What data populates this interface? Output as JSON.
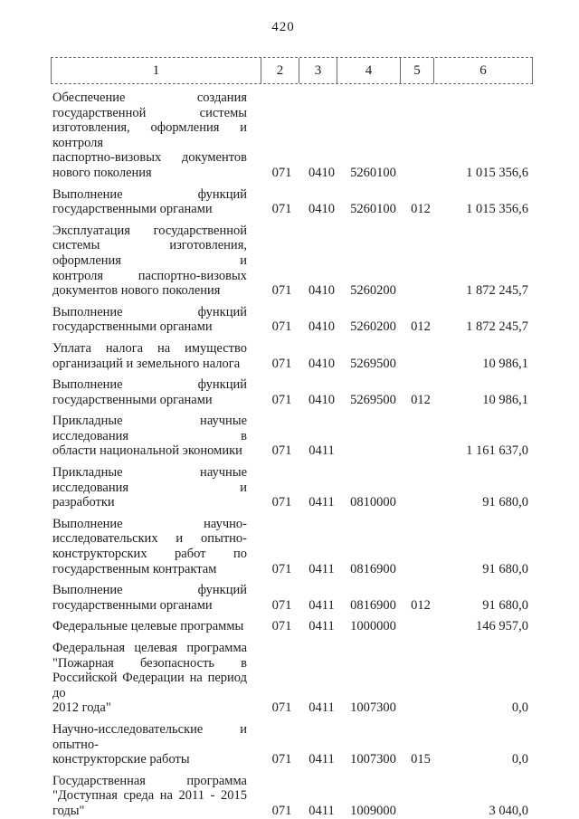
{
  "page": {
    "number": "420"
  },
  "colors": {
    "ink": "#1c1c1c",
    "paper": "#ffffff",
    "table_border": "#6a6a6a"
  },
  "table": {
    "header": [
      "1",
      "2",
      "3",
      "4",
      "5",
      "6"
    ],
    "rows": [
      {
        "name_lines": [
          "Обеспечение создания",
          "государственной системы",
          "изготовления, оформления и контроля",
          "паспортно-визовых документов",
          "нового поколения"
        ],
        "col2": "071",
        "col3": "0410",
        "col4": "5260100",
        "col5": "",
        "col6": "1 015 356,6"
      },
      {
        "name_lines": [
          "Выполнение функций",
          "государственными органами"
        ],
        "col2": "071",
        "col3": "0410",
        "col4": "5260100",
        "col5": "012",
        "col6": "1 015 356,6"
      },
      {
        "name_lines": [
          "Эксплуатация государственной",
          "системы изготовления, оформления и",
          "контроля паспортно-визовых",
          "документов нового поколения"
        ],
        "col2": "071",
        "col3": "0410",
        "col4": "5260200",
        "col5": "",
        "col6": "1 872 245,7"
      },
      {
        "name_lines": [
          "Выполнение функций",
          "государственными органами"
        ],
        "col2": "071",
        "col3": "0410",
        "col4": "5260200",
        "col5": "012",
        "col6": "1 872 245,7"
      },
      {
        "name_lines": [
          "Уплата налога на имущество",
          "организаций и земельного налога"
        ],
        "col2": "071",
        "col3": "0410",
        "col4": "5269500",
        "col5": "",
        "col6": "10 986,1"
      },
      {
        "name_lines": [
          "Выполнение функций",
          "государственными органами"
        ],
        "col2": "071",
        "col3": "0410",
        "col4": "5269500",
        "col5": "012",
        "col6": "10 986,1"
      },
      {
        "name_lines": [
          "Прикладные научные исследования в",
          "области национальной экономики"
        ],
        "col2": "071",
        "col3": "0411",
        "col4": "",
        "col5": "",
        "col6": "1 161 637,0"
      },
      {
        "name_lines": [
          "Прикладные научные исследования и",
          "разработки"
        ],
        "col2": "071",
        "col3": "0411",
        "col4": "0810000",
        "col5": "",
        "col6": "91 680,0"
      },
      {
        "name_lines": [
          "Выполнение научно-",
          "исследовательских и опытно-",
          "конструкторских работ по",
          "государственным контрактам"
        ],
        "col2": "071",
        "col3": "0411",
        "col4": "0816900",
        "col5": "",
        "col6": "91 680,0"
      },
      {
        "name_lines": [
          "Выполнение функций",
          "государственными органами"
        ],
        "col2": "071",
        "col3": "0411",
        "col4": "0816900",
        "col5": "012",
        "col6": "91 680,0"
      },
      {
        "name_lines": [
          "Федеральные целевые программы"
        ],
        "col2": "071",
        "col3": "0411",
        "col4": "1000000",
        "col5": "",
        "col6": "146 957,0"
      },
      {
        "name_lines": [
          "Федеральная целевая программа",
          "\"Пожарная безопасность в",
          "Российской Федерации на период до",
          "2012 года\""
        ],
        "col2": "071",
        "col3": "0411",
        "col4": "1007300",
        "col5": "",
        "col6": "0,0"
      },
      {
        "name_lines": [
          "Научно-исследовательские и опытно-",
          "конструкторские работы"
        ],
        "col2": "071",
        "col3": "0411",
        "col4": "1007300",
        "col5": "015",
        "col6": "0,0"
      },
      {
        "name_lines": [
          "Государственная программа",
          "\"Доступная среда на 2011 - 2015",
          "годы\""
        ],
        "col2": "071",
        "col3": "0411",
        "col4": "1009000",
        "col5": "",
        "col6": "3 040,0"
      }
    ]
  }
}
